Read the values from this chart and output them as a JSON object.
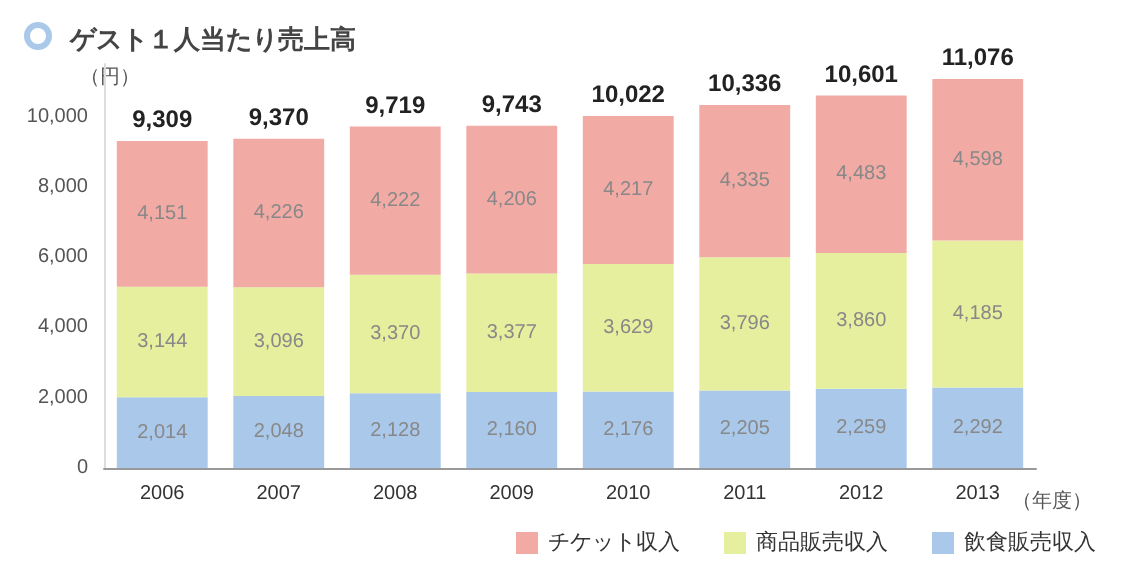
{
  "chart_data": {
    "type": "bar",
    "title": "ゲスト１人当たり売上高",
    "ylabel": "（円）",
    "xlabel": "（年度）",
    "categories": [
      "2006",
      "2007",
      "2008",
      "2009",
      "2010",
      "2011",
      "2012",
      "2013"
    ],
    "series": [
      {
        "name": "飲食販売収入",
        "color": "#a9c8ea",
        "values": [
          2014,
          2048,
          2128,
          2160,
          2176,
          2205,
          2259,
          2292
        ],
        "value_labels": [
          "2,014",
          "2,048",
          "2,128",
          "2,160",
          "2,176",
          "2,205",
          "2,259",
          "2,292"
        ]
      },
      {
        "name": "商品販売収入",
        "color": "#e6ef9e",
        "values": [
          3144,
          3096,
          3370,
          3377,
          3629,
          3796,
          3860,
          4185
        ],
        "value_labels": [
          "3,144",
          "3,096",
          "3,370",
          "3,377",
          "3,629",
          "3,796",
          "3,860",
          "4,185"
        ]
      },
      {
        "name": "チケット収入",
        "color": "#f2aaa5",
        "values": [
          4151,
          4226,
          4222,
          4206,
          4217,
          4335,
          4483,
          4598
        ],
        "value_labels": [
          "4,151",
          "4,226",
          "4,222",
          "4,206",
          "4,217",
          "4,335",
          "4,483",
          "4,598"
        ]
      }
    ],
    "stacked": true,
    "totals": [
      "9,309",
      "9,370",
      "9,719",
      "9,743",
      "10,022",
      "10,336",
      "10,601",
      "11,076"
    ],
    "ylim": [
      0,
      11500
    ],
    "yticks": [
      0,
      {
        "value": 2000,
        "label": "2,000"
      },
      {
        "value": 4000,
        "label": "4,000"
      },
      {
        "value": 6000,
        "label": "6,000"
      },
      {
        "value": 8000,
        "label": "8,000"
      },
      {
        "value": 10000,
        "label": "10,000"
      }
    ],
    "grid": false,
    "legend": "bottom right"
  }
}
